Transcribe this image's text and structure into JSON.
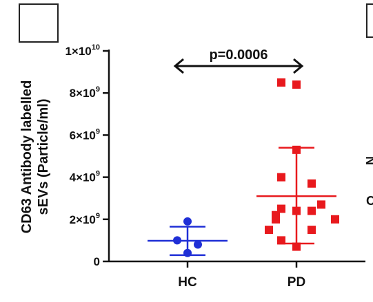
{
  "figure": {
    "panel_box": {
      "label": ""
    }
  },
  "chart_data": {
    "type": "scatter",
    "ylabel_line1": "CD63 Antibody labelled",
    "ylabel_line2": "sEVs (Particle/ml)",
    "xlabel": "",
    "categories": [
      "HC",
      "PD"
    ],
    "ylim": [
      0,
      10000000000
    ],
    "yticks": [
      0,
      2000000000,
      4000000000,
      6000000000,
      8000000000,
      10000000000
    ],
    "ytick_labels": [
      {
        "base": "0",
        "exp": ""
      },
      {
        "base": "2×10",
        "exp": "9"
      },
      {
        "base": "4×10",
        "exp": "9"
      },
      {
        "base": "6×10",
        "exp": "9"
      },
      {
        "base": "8×10",
        "exp": "9"
      },
      {
        "base": "1×10",
        "exp": "10"
      }
    ],
    "series": [
      {
        "category": "HC",
        "color": "#1f2fd6",
        "marker": "circle",
        "points": [
          1900000000,
          1000000000,
          800000000,
          400000000
        ],
        "mean": 980000000,
        "sd_upper": 1650000000,
        "sd_lower": 300000000
      },
      {
        "category": "PD",
        "color": "#e8191d",
        "marker": "square",
        "points": [
          8500000000,
          8400000000,
          5300000000,
          4000000000,
          3700000000,
          2700000000,
          2500000000,
          2400000000,
          2400000000,
          2200000000,
          2000000000,
          2000000000,
          1500000000,
          1500000000,
          1000000000,
          700000000
        ],
        "mean": 3100000000,
        "sd_upper": 5400000000,
        "sd_lower": 850000000
      }
    ],
    "annotations": [
      {
        "text": "p=0.0006",
        "between": [
          "HC",
          "PD"
        ]
      }
    ],
    "grid": false,
    "legend": "none"
  },
  "side_glyphs": [
    "N",
    "C"
  ]
}
